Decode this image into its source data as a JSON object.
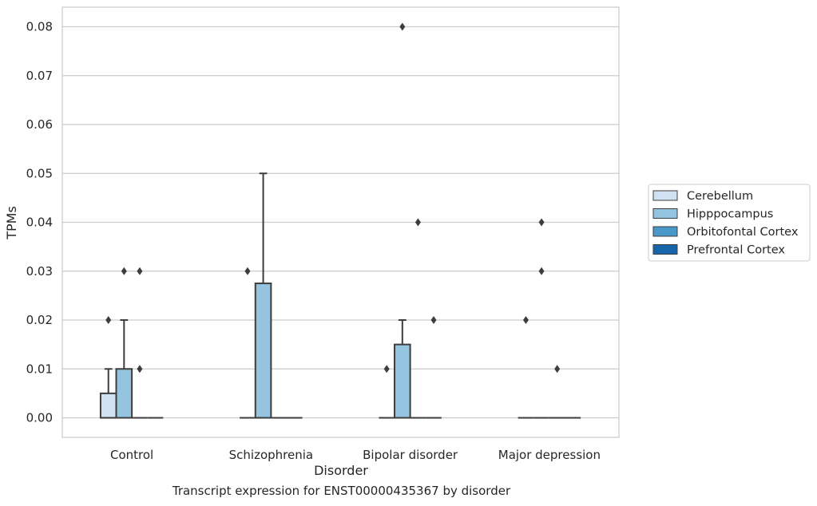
{
  "chart_data": {
    "type": "box",
    "title": "",
    "caption": "Transcript expression for ENST00000435367 by disorder",
    "xlabel": "Disorder",
    "ylabel": "TPMs",
    "categories": [
      "Control",
      "Schizophrenia",
      "Bipolar disorder",
      "Major depression"
    ],
    "ylim": [
      -0.004,
      0.084
    ],
    "yticks": [
      "0.00",
      "0.01",
      "0.02",
      "0.03",
      "0.04",
      "0.05",
      "0.06",
      "0.07",
      "0.08"
    ],
    "ytick_values": [
      0,
      0.01,
      0.02,
      0.03,
      0.04,
      0.05,
      0.06,
      0.07,
      0.08
    ],
    "grid": true,
    "legend_position": "right",
    "series": [
      {
        "name": "Cerebellum",
        "color": "#d0e1f2",
        "boxes": [
          {
            "q1": 0,
            "median": 0,
            "q3": 0.005,
            "whisker_low": 0,
            "whisker_high": 0.01,
            "outliers": [
              0.02
            ]
          },
          {
            "q1": 0,
            "median": 0,
            "q3": 0,
            "whisker_low": 0,
            "whisker_high": 0,
            "outliers": [
              0.03
            ]
          },
          {
            "q1": 0,
            "median": 0,
            "q3": 0,
            "whisker_low": 0,
            "whisker_high": 0,
            "outliers": [
              0.01
            ]
          },
          {
            "q1": 0,
            "median": 0,
            "q3": 0,
            "whisker_low": 0,
            "whisker_high": 0,
            "outliers": [
              0.02
            ]
          }
        ]
      },
      {
        "name": "Hipppocampus",
        "color": "#94c4df",
        "boxes": [
          {
            "q1": 0,
            "median": 0,
            "q3": 0.01,
            "whisker_low": 0,
            "whisker_high": 0.02,
            "outliers": [
              0.03
            ]
          },
          {
            "q1": 0,
            "median": 0,
            "q3": 0.0275,
            "whisker_low": 0,
            "whisker_high": 0.05,
            "outliers": []
          },
          {
            "q1": 0,
            "median": 0,
            "q3": 0.015,
            "whisker_low": 0,
            "whisker_high": 0.02,
            "outliers": [
              0.08
            ]
          },
          {
            "q1": 0,
            "median": 0,
            "q3": 0,
            "whisker_low": 0,
            "whisker_high": 0,
            "outliers": [
              0.03,
              0.04
            ]
          }
        ]
      },
      {
        "name": "Orbitofontal Cortex",
        "color": "#4a98c9",
        "boxes": [
          {
            "q1": 0,
            "median": 0,
            "q3": 0,
            "whisker_low": 0,
            "whisker_high": 0,
            "outliers": [
              0.01,
              0.03
            ]
          },
          {
            "q1": 0,
            "median": 0,
            "q3": 0,
            "whisker_low": 0,
            "whisker_high": 0,
            "outliers": []
          },
          {
            "q1": 0,
            "median": 0,
            "q3": 0,
            "whisker_low": 0,
            "whisker_high": 0,
            "outliers": [
              0.04
            ]
          },
          {
            "q1": 0,
            "median": 0,
            "q3": 0,
            "whisker_low": 0,
            "whisker_high": 0,
            "outliers": [
              0.01
            ]
          }
        ]
      },
      {
        "name": "Prefrontal Cortex",
        "color": "#1764ab",
        "boxes": [
          {
            "q1": 0,
            "median": 0,
            "q3": 0,
            "whisker_low": 0,
            "whisker_high": 0,
            "outliers": []
          },
          {
            "q1": 0,
            "median": 0,
            "q3": 0,
            "whisker_low": 0,
            "whisker_high": 0,
            "outliers": []
          },
          {
            "q1": 0,
            "median": 0,
            "q3": 0,
            "whisker_low": 0,
            "whisker_high": 0,
            "outliers": [
              0.02
            ]
          },
          {
            "q1": 0,
            "median": 0,
            "q3": 0,
            "whisker_low": 0,
            "whisker_high": 0,
            "outliers": []
          }
        ]
      }
    ]
  }
}
